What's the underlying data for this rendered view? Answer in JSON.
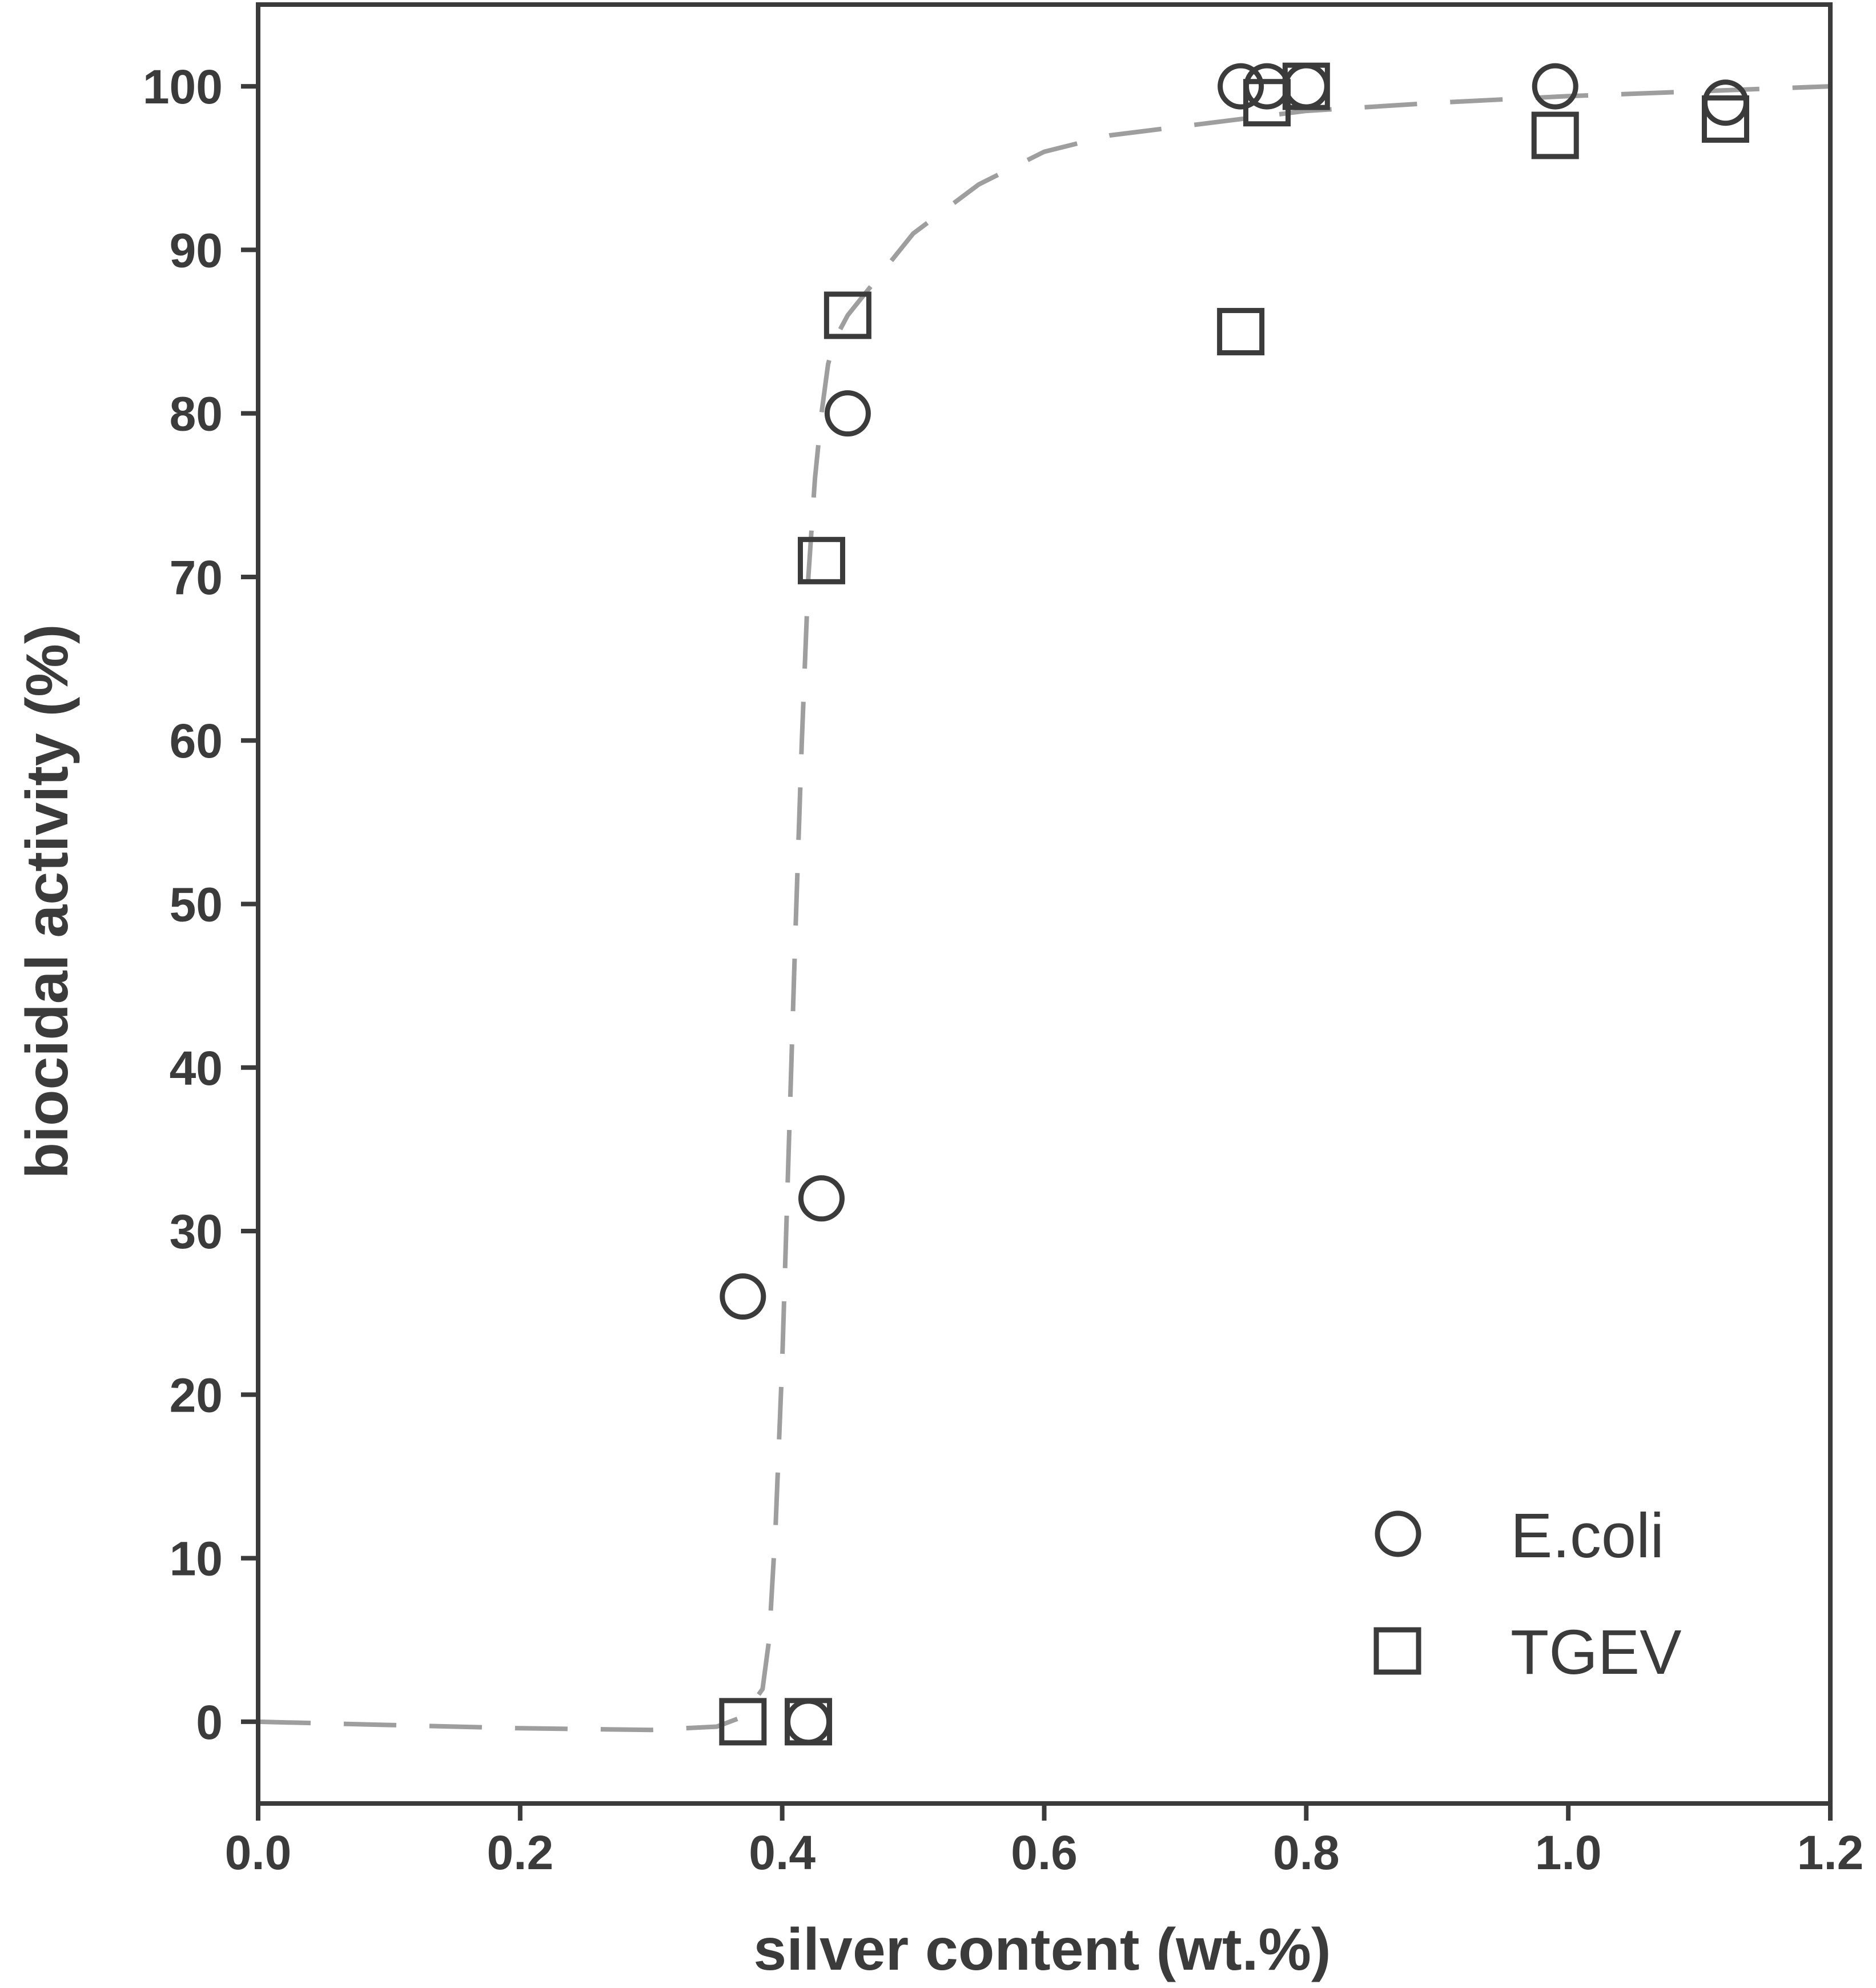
{
  "chart_data": {
    "type": "scatter",
    "xlabel": "silver content (wt.%)",
    "ylabel": "biocidal activity (%)",
    "xlim": [
      0.0,
      1.2
    ],
    "ylim": [
      -5,
      105
    ],
    "xticks": [
      "0.0",
      "0.2",
      "0.4",
      "0.6",
      "0.8",
      "1.0",
      "1.2"
    ],
    "yticks": [
      "0",
      "10",
      "20",
      "30",
      "40",
      "50",
      "60",
      "70",
      "80",
      "90",
      "100"
    ],
    "grid": false,
    "legend_position": "bottom-right",
    "series": [
      {
        "name": "E.coli",
        "marker": "circle",
        "x": [
          0.37,
          0.42,
          0.43,
          0.45,
          0.75,
          0.77,
          0.8,
          0.99,
          1.12
        ],
        "y": [
          26,
          0,
          32,
          80,
          100,
          100,
          100,
          100,
          99
        ]
      },
      {
        "name": "TGEV",
        "marker": "square",
        "x": [
          0.37,
          0.42,
          0.43,
          0.45,
          0.75,
          0.77,
          0.8,
          0.99,
          1.12
        ],
        "y": [
          0,
          0,
          71,
          86,
          85,
          99,
          100,
          97,
          98
        ]
      }
    ],
    "fit_curve": {
      "style": "dashed",
      "x": [
        0.0,
        0.1,
        0.2,
        0.3,
        0.35,
        0.37,
        0.385,
        0.39,
        0.395,
        0.4,
        0.405,
        0.41,
        0.415,
        0.42,
        0.425,
        0.43,
        0.435,
        0.44,
        0.45,
        0.46,
        0.48,
        0.5,
        0.55,
        0.6,
        0.65,
        0.7,
        0.8,
        0.9,
        1.0,
        1.1,
        1.2
      ],
      "y": [
        0,
        -0.2,
        -0.4,
        -0.5,
        -0.3,
        0.3,
        2,
        5,
        12,
        22,
        35,
        48,
        60,
        70,
        76,
        80,
        83,
        84.5,
        86,
        87,
        89,
        91,
        94,
        96,
        97,
        97.5,
        98.5,
        99,
        99.4,
        99.7,
        100
      ]
    },
    "colors": {
      "axis": "#3b3b3b",
      "marker": "#3b3b3b",
      "fit_curve": "#9e9e9e",
      "background": "#ffffff"
    }
  }
}
